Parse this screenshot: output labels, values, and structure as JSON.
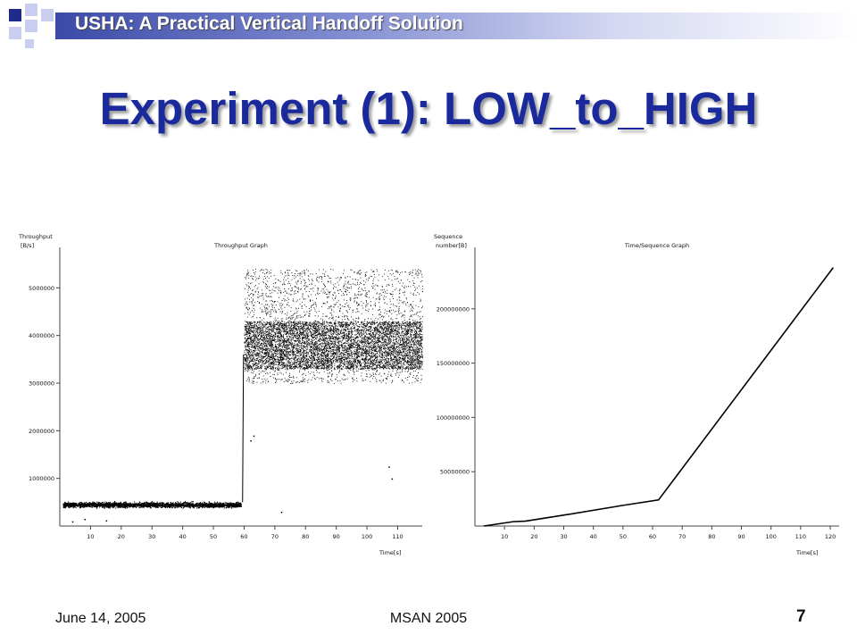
{
  "header": {
    "title": "USHA: A Practical Vertical Handoff Solution"
  },
  "slide": {
    "title": "Experiment (1): LOW_to_HIGH"
  },
  "footer": {
    "date": "June 14, 2005",
    "center": "MSAN 2005",
    "page": "7"
  },
  "colors": {
    "title": "#1a2a9c",
    "deco": "#1f2a8a",
    "deco_light": "#c9cdee"
  },
  "chart_data": [
    {
      "type": "scatter",
      "title": "Throughput Graph",
      "ylabel": [
        "Throughput",
        "[B/s]"
      ],
      "xlabel": "Time[s]",
      "xlim": [
        0,
        118
      ],
      "ylim": [
        0,
        5700000
      ],
      "xticks": [
        10,
        20,
        30,
        40,
        50,
        60,
        70,
        80,
        90,
        100,
        110
      ],
      "yticks": [
        1000000,
        2000000,
        3000000,
        4000000,
        5000000
      ],
      "segments": [
        {
          "name": "low",
          "x_range": [
            0,
            59
          ],
          "y_band": [
            300000,
            600000
          ]
        },
        {
          "name": "high",
          "x_range": [
            60,
            118
          ],
          "y_band": [
            3000000,
            5400000
          ],
          "dense_band": [
            3300000,
            4300000
          ]
        }
      ],
      "outliers": [
        [
          62,
          1800000
        ],
        [
          63,
          1900000
        ],
        [
          72,
          300000
        ],
        [
          107,
          1250000
        ],
        [
          108,
          1000000
        ],
        [
          4,
          100000
        ],
        [
          8,
          150000
        ],
        [
          15,
          120000
        ]
      ]
    },
    {
      "type": "line",
      "title": "Time/Sequence Graph",
      "ylabel": [
        "Sequence",
        "number[B]"
      ],
      "xlabel": "Time[s]",
      "xlim": [
        0,
        123
      ],
      "ylim": [
        0,
        250000000
      ],
      "xticks": [
        10,
        20,
        30,
        40,
        50,
        60,
        70,
        80,
        90,
        100,
        110,
        120
      ],
      "yticks": [
        50000000,
        100000000,
        150000000,
        200000000
      ],
      "x": [
        3,
        13,
        17,
        30,
        50,
        62,
        121
      ],
      "y": [
        0,
        4000000,
        4500000,
        10000000,
        19000000,
        24000000,
        238000000
      ]
    }
  ]
}
